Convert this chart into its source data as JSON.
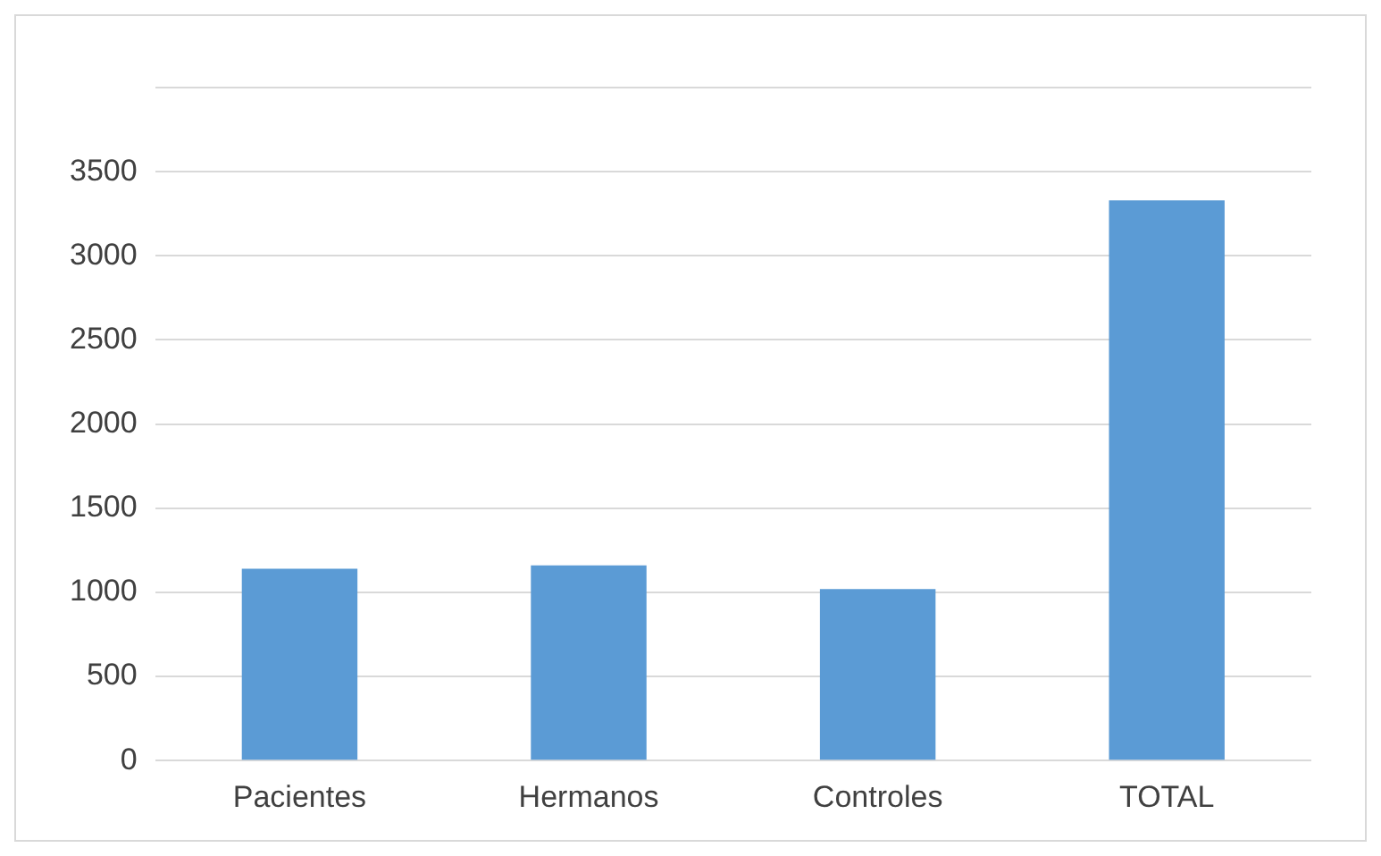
{
  "chart_data": {
    "type": "bar",
    "categories": [
      "Pacientes",
      "Hermanos",
      "Controles",
      "TOTAL"
    ],
    "values": [
      1140,
      1160,
      1020,
      3330
    ],
    "color": "#5b9bd5",
    "ylim": [
      0,
      4000
    ],
    "yticks": [
      0,
      500,
      1000,
      1500,
      2000,
      2500,
      3000,
      3500,
      {
        "value": 4000,
        "label": null
      }
    ],
    "grid": "y",
    "legend": false
  }
}
